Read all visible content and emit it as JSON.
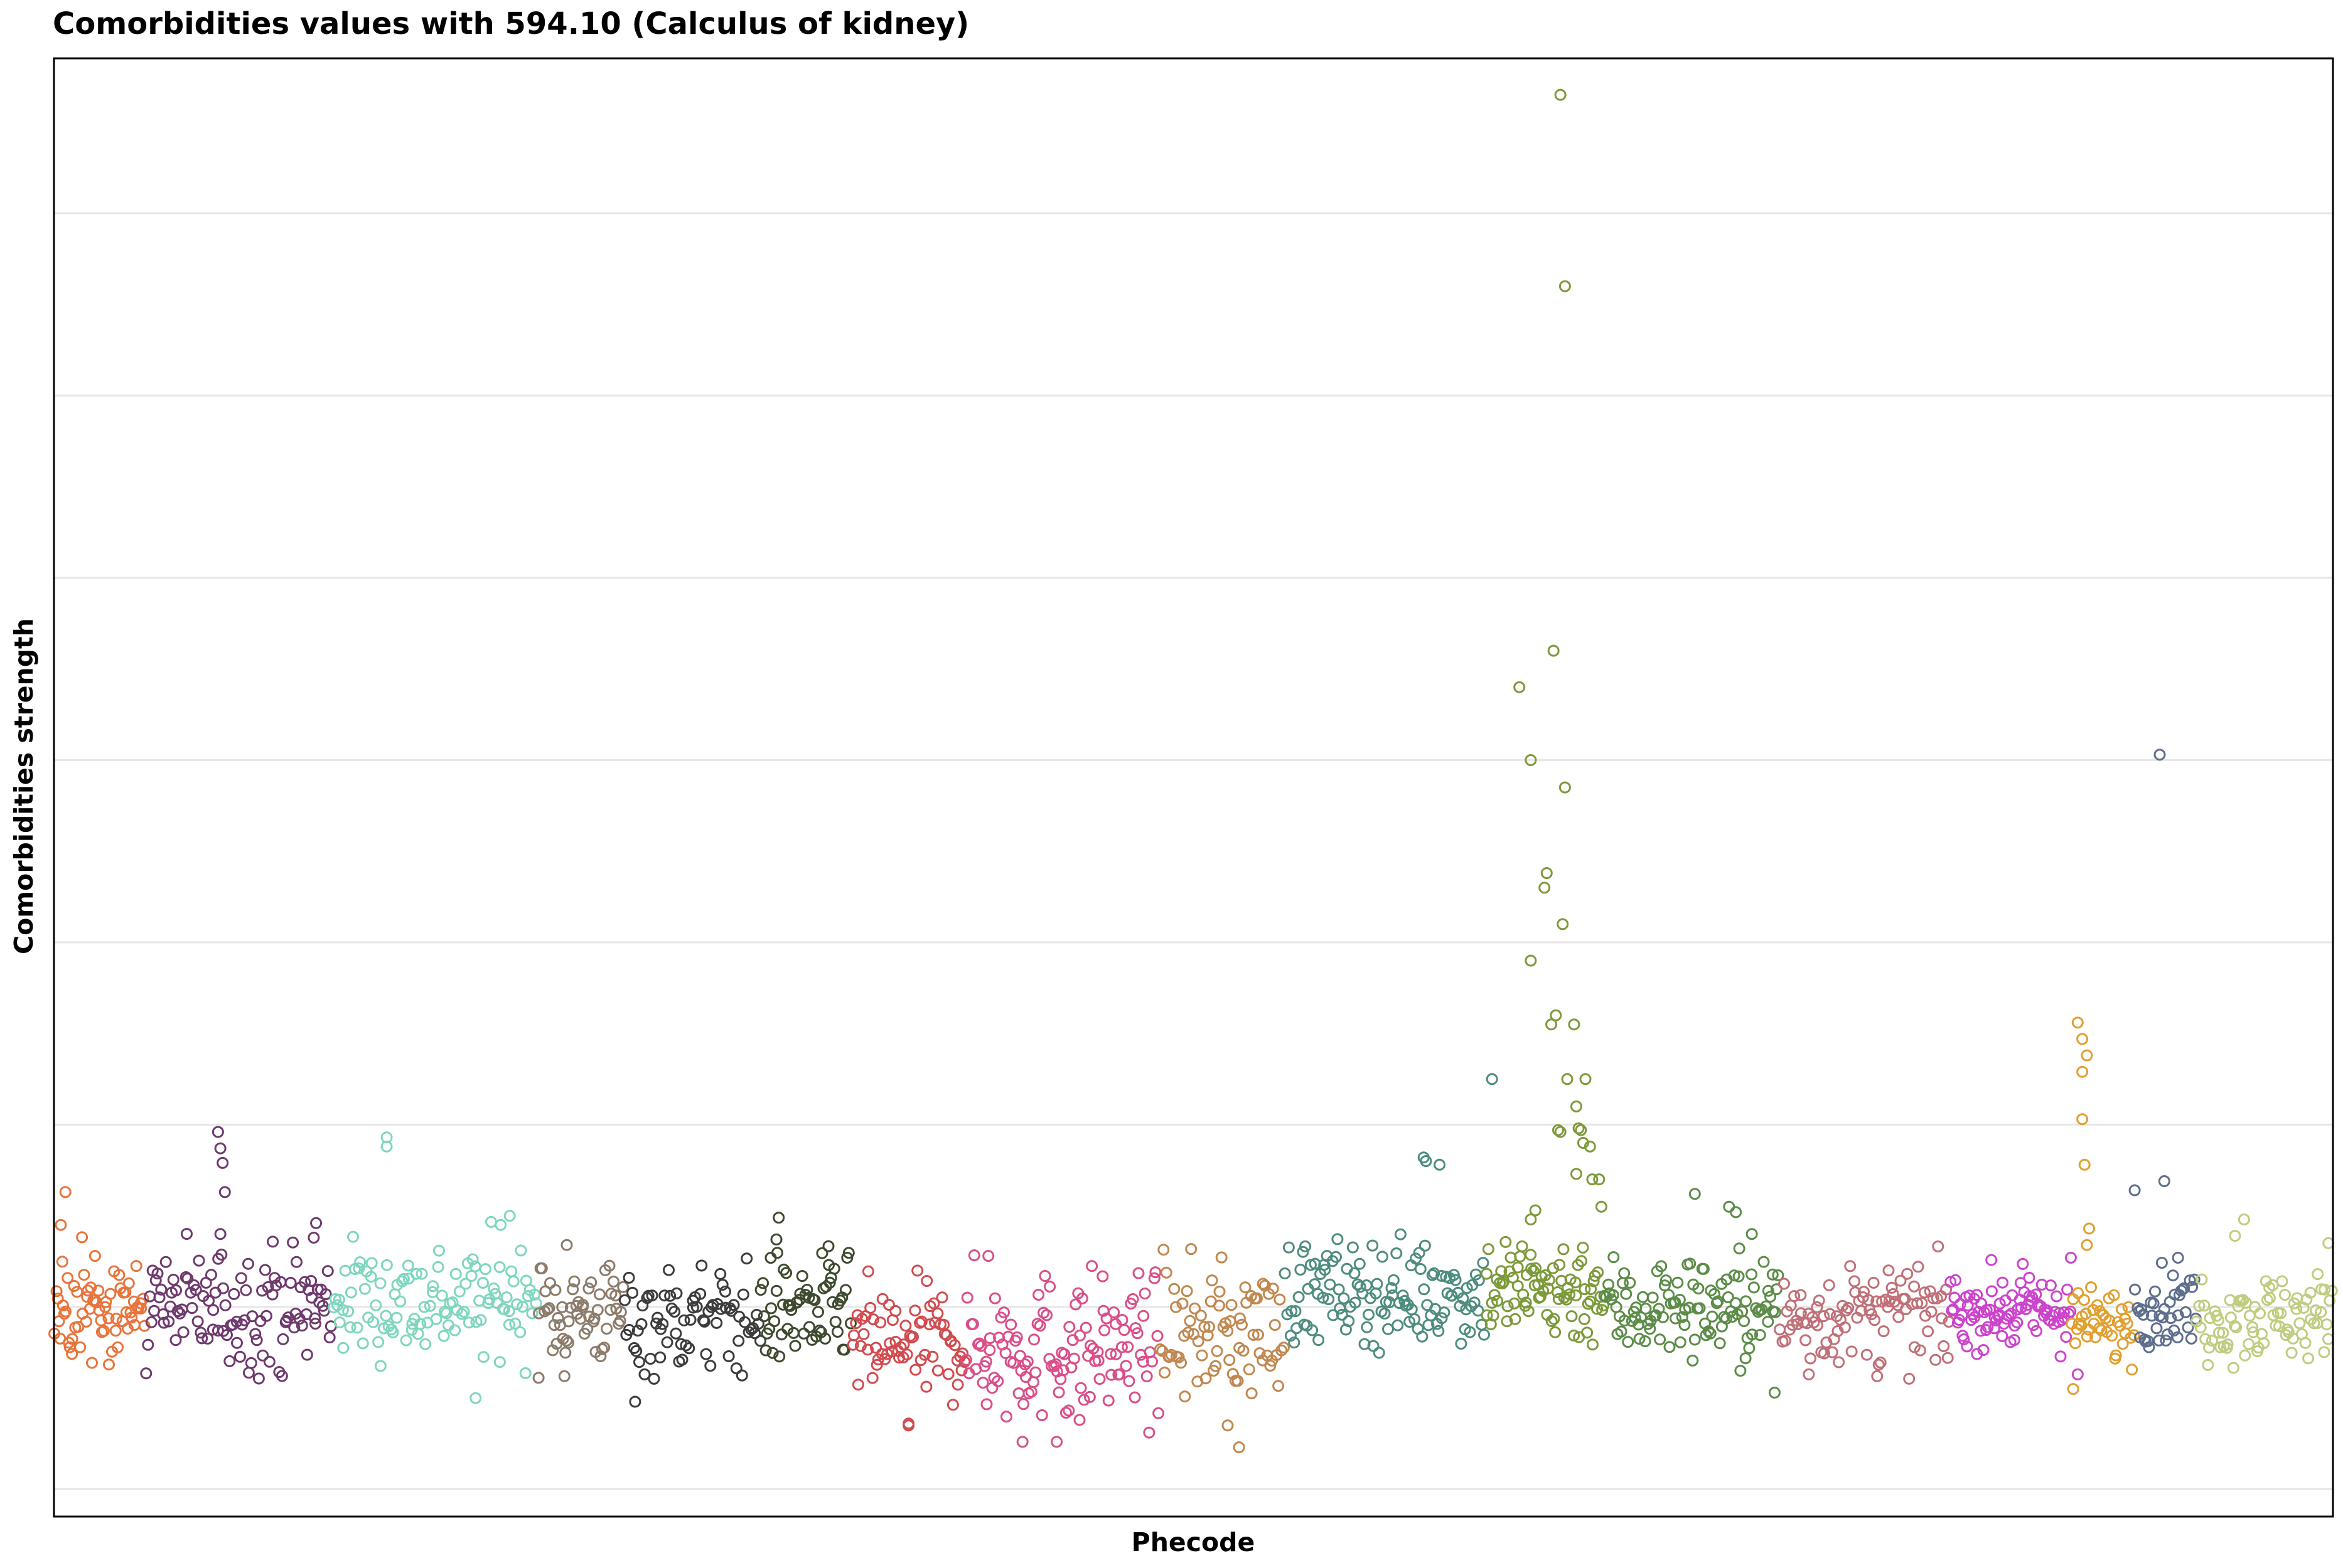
{
  "chart_data": {
    "type": "scatter",
    "title": "Comorbidities values with 594.10 (Calculus of kidney)",
    "xlabel": "Phecode",
    "ylabel": "Comorbidities strength",
    "grid": true,
    "legend": "none",
    "xlim": [
      0,
      1000
    ],
    "ylim": [
      -1.15,
      6.85
    ],
    "y_gridlines": [
      -1,
      0,
      1,
      2,
      3,
      4,
      5,
      6
    ],
    "marker": "open-circle",
    "groups": [
      {
        "color": "#E8743B",
        "x_range": [
          0,
          40
        ],
        "count": 65,
        "mean": 0.0,
        "spread": 0.14,
        "outliers": [
          [
            5,
            0.63
          ],
          [
            3,
            0.45
          ],
          [
            18,
            0.28
          ]
        ]
      },
      {
        "color": "#6E3A6E",
        "x_range": [
          40,
          122
        ],
        "count": 110,
        "mean": 0.0,
        "spread": 0.17,
        "outliers": [
          [
            72,
            0.96
          ],
          [
            73,
            0.87
          ],
          [
            74,
            0.79
          ],
          [
            75,
            0.63
          ],
          [
            73,
            0.4
          ],
          [
            115,
            0.46
          ],
          [
            114,
            0.38
          ]
        ]
      },
      {
        "color": "#7FD6C0",
        "x_range": [
          122,
          212
        ],
        "count": 110,
        "mean": 0.04,
        "spread": 0.16,
        "outliers": [
          [
            146,
            0.93
          ],
          [
            146,
            0.88
          ],
          [
            200,
            0.5
          ],
          [
            196,
            0.45
          ],
          [
            185,
            -0.5
          ]
        ]
      },
      {
        "color": "#8C7B6A",
        "x_range": [
          212,
          250
        ],
        "count": 55,
        "mean": -0.03,
        "spread": 0.14,
        "outliers": [
          [
            225,
            0.34
          ],
          [
            224,
            -0.38
          ]
        ]
      },
      {
        "color": "#3C3C3C",
        "x_range": [
          250,
          310
        ],
        "count": 75,
        "mean": -0.07,
        "spread": 0.15,
        "outliers": [
          [
            255,
            -0.52
          ]
        ]
      },
      {
        "color": "#3E4A2E",
        "x_range": [
          310,
          350
        ],
        "count": 60,
        "mean": -0.02,
        "spread": 0.15,
        "outliers": [
          [
            318,
            0.49
          ],
          [
            317,
            0.37
          ],
          [
            340,
            0.23
          ]
        ]
      },
      {
        "color": "#D24B4F",
        "x_range": [
          350,
          400
        ],
        "count": 70,
        "mean": -0.2,
        "spread": 0.16,
        "outliers": [
          [
            375,
            -0.64
          ],
          [
            375,
            -0.65
          ]
        ]
      },
      {
        "color": "#D94F8A",
        "x_range": [
          400,
          485
        ],
        "count": 120,
        "mean": -0.22,
        "spread": 0.2,
        "outliers": [
          [
            410,
            0.28
          ],
          [
            440,
            -0.74
          ],
          [
            450,
            -0.62
          ],
          [
            425,
            -0.74
          ]
        ]
      },
      {
        "color": "#C08850",
        "x_range": [
          485,
          540
        ],
        "count": 75,
        "mean": -0.13,
        "spread": 0.18,
        "outliers": [
          [
            520,
            -0.77
          ],
          [
            515,
            -0.65
          ]
        ]
      },
      {
        "color": "#4E8C80",
        "x_range": [
          540,
          628
        ],
        "count": 120,
        "mean": 0.08,
        "spread": 0.14,
        "outliers": [
          [
            601,
            0.82
          ],
          [
            602,
            0.8
          ],
          [
            608,
            0.78
          ],
          [
            631,
            1.25
          ]
        ]
      },
      {
        "color": "#7C9A3A",
        "x_range": [
          628,
          680
        ],
        "count": 80,
        "mean": 0.1,
        "spread": 0.15,
        "outliers": [
          [
            661,
            6.65
          ],
          [
            663,
            5.6
          ],
          [
            658,
            3.6
          ],
          [
            643,
            3.4
          ],
          [
            648,
            3.0
          ],
          [
            663,
            2.85
          ],
          [
            655,
            2.38
          ],
          [
            654,
            2.3
          ],
          [
            662,
            2.1
          ],
          [
            648,
            1.9
          ],
          [
            659,
            1.6
          ],
          [
            657,
            1.55
          ],
          [
            667,
            1.55
          ],
          [
            664,
            1.25
          ],
          [
            672,
            1.25
          ],
          [
            668,
            1.1
          ],
          [
            669,
            0.98
          ],
          [
            670,
            0.97
          ],
          [
            661,
            0.96
          ],
          [
            660,
            0.97
          ],
          [
            671,
            0.9
          ],
          [
            674,
            0.88
          ],
          [
            675,
            0.7
          ],
          [
            678,
            0.7
          ],
          [
            679,
            0.55
          ],
          [
            668,
            0.73
          ],
          [
            650,
            0.53
          ],
          [
            648,
            0.48
          ]
        ]
      },
      {
        "color": "#5C8C48",
        "x_range": [
          680,
          757
        ],
        "count": 110,
        "mean": 0.0,
        "spread": 0.14,
        "outliers": [
          [
            720,
            0.62
          ],
          [
            735,
            0.55
          ],
          [
            738,
            0.52
          ],
          [
            745,
            0.4
          ],
          [
            740,
            -0.35
          ],
          [
            755,
            -0.47
          ]
        ]
      },
      {
        "color": "#C07078",
        "x_range": [
          757,
          832
        ],
        "count": 95,
        "mean": -0.05,
        "spread": 0.13,
        "outliers": [
          [
            770,
            -0.37
          ],
          [
            800,
            -0.38
          ],
          [
            805,
            0.2
          ]
        ]
      },
      {
        "color": "#CC44CC",
        "x_range": [
          832,
          885
        ],
        "count": 90,
        "mean": -0.02,
        "spread": 0.1,
        "outliers": [
          [
            888,
            -0.37
          ],
          [
            885,
            0.27
          ]
        ]
      },
      {
        "color": "#E0A030",
        "x_range": [
          885,
          913
        ],
        "count": 40,
        "mean": -0.1,
        "spread": 0.1,
        "outliers": [
          [
            888,
            1.56
          ],
          [
            890,
            1.47
          ],
          [
            892,
            1.38
          ],
          [
            890,
            1.29
          ],
          [
            890,
            1.03
          ],
          [
            891,
            0.78
          ],
          [
            893,
            0.43
          ],
          [
            892,
            0.34
          ],
          [
            886,
            -0.45
          ]
        ]
      },
      {
        "color": "#5E6E8C",
        "x_range": [
          913,
          940
        ],
        "count": 40,
        "mean": 0.0,
        "spread": 0.1,
        "outliers": [
          [
            924,
            3.03
          ],
          [
            926,
            0.69
          ],
          [
            913,
            0.64
          ],
          [
            932,
            0.27
          ]
        ]
      },
      {
        "color": "#C0CC80",
        "x_range": [
          940,
          1000
        ],
        "count": 80,
        "mean": -0.05,
        "spread": 0.12,
        "outliers": [
          [
            961,
            0.48
          ],
          [
            957,
            0.39
          ],
          [
            998,
            0.35
          ]
        ]
      }
    ]
  }
}
